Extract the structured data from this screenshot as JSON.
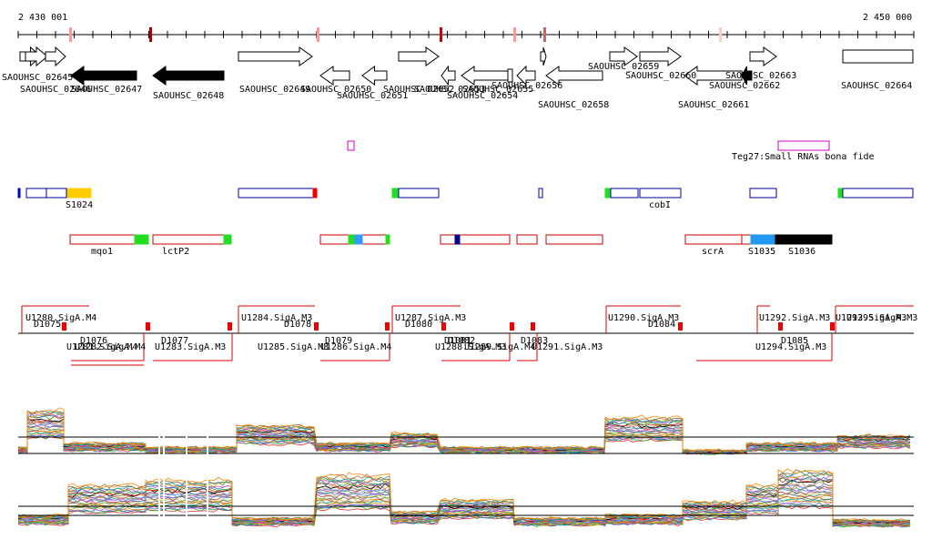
{
  "scale": {
    "start": "2 430 001",
    "end": "2 450 000"
  },
  "genes": [
    "SAOUHSC_02645",
    "SAOUHSC_02646",
    "SAOUHSC_02647",
    "SAOUHSC_02648",
    "SAOUHSC_02649",
    "SAOUHSC_02650",
    "SAOUHSC_02651",
    "SAOUHSC_02652",
    "SAOUHSC_02653",
    "SAOUHSC_02654",
    "SAOUHSC_02655",
    "SAOUHSC_02656",
    "SAOUHSC_02658",
    "SAOUHSC_02659",
    "SAOUHSC_02660",
    "SAOUHSC_02661",
    "SAOUHSC_02662",
    "SAOUHSC_02663",
    "SAOUHSC_02664"
  ],
  "small_rna": {
    "label": "Teg27:Small RNAs bona fide"
  },
  "track_a": [
    "S1024",
    "cobI"
  ],
  "track_b": [
    "mqo1",
    "lctP2",
    "scrA",
    "S1035",
    "S1036"
  ],
  "promoters": [
    "U1280.SigA.M4",
    "D1075",
    "D1076",
    "U1281.SigA.M4",
    "U1282.SigA.M4",
    "D1077",
    "U1283.SigA.M3",
    "U1284.SigA.M3",
    "D1078",
    "D1079",
    "U1285.SigA.M3",
    "U1286.SigA.M4",
    "U1287.SigA.M3",
    "D1080",
    "D1081",
    "D1082",
    "U1288.SigA.M3",
    "U1289.SigA.M4",
    "D1083",
    "U1291.SigA.M3",
    "U1290.SigA.M3",
    "D1084",
    "U1292.SigA.M3",
    "U1293.SigA.M3",
    "U1295.SigA.M3",
    "D1085",
    "U1294.SigA.M3"
  ]
}
